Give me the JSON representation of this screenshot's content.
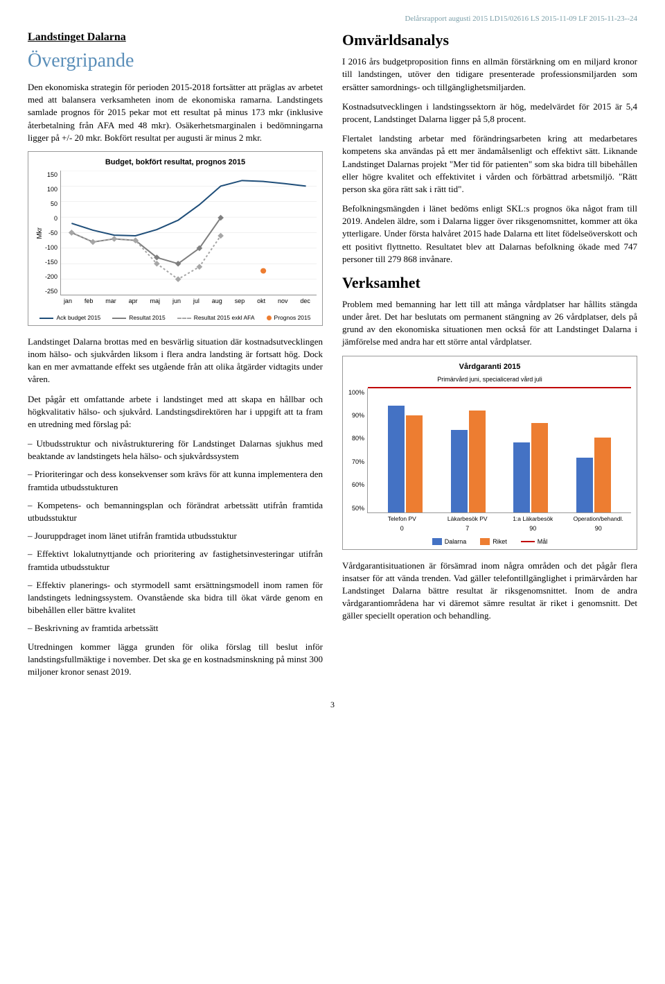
{
  "meta": {
    "header_line": "Delårsrapport augusti 2015 LD15/02616 LS 2015-11-09 LF 2015-11-23--24",
    "page_number": "3"
  },
  "left": {
    "org_title": "Landstinget Dalarna",
    "section_title": "Övergripande",
    "p1": "Den ekonomiska strategin för perioden 2015-2018 fortsätter att präglas av arbetet med att balansera verksamheten inom de ekonomiska ramarna. Landstingets samlade prognos för 2015 pekar mot ett resultat på minus 173 mkr (inklusive återbetalning från AFA med 48 mkr). Osäkerhetsmarginalen i bedömningarna ligger på +/- 20 mkr. Bokfört resultat per augusti är minus 2 mkr.",
    "p2": "Landstinget Dalarna brottas med en besvärlig situation där kostnadsutvecklingen inom hälso- och sjukvården liksom i flera andra landsting är fortsatt hög. Dock kan en mer avmattande effekt ses utgående från att olika åtgärder vidtagits under våren.",
    "p3": "Det pågår ett omfattande arbete i landstinget med att skapa en hållbar och högkvalitativ hälso- och sjukvård. Landstingsdirektören har i uppgift att ta fram en utredning med förslag på:",
    "b1": "– Utbudsstruktur och nivåstrukturering för Landstinget Dalarnas sjukhus med beaktande av landstingets hela hälso- och sjukvårdssystem",
    "b2": "– Prioriteringar och dess konsekvenser som krävs för att kunna implementera den framtida utbudsstukturen",
    "b3": "– Kompetens- och bemanningsplan och förändrat arbetssätt utifrån framtida utbudsstuktur",
    "b4": "– Jouruppdraget inom länet utifrån framtida utbudsstuktur",
    "b5": "– Effektivt lokalutnyttjande och prioritering av fastighetsinvesteringar utifrån framtida utbudsstuktur",
    "b6": "– Effektiv planerings- och styrmodell samt ersättningsmodell inom ramen för landstingets ledningssystem. Ovanstående ska bidra till ökat värde genom en bibehållen eller bättre kvalitet",
    "b7": "– Beskrivning av framtida arbetssätt",
    "p4": "Utredningen kommer lägga grunden för olika förslag till beslut inför landstingsfullmäktige i november. Det ska ge en kostnadsminskning på minst 300 miljoner kronor senast 2019."
  },
  "right": {
    "section1_title": "Omvärldsanalys",
    "r1": "I 2016 års budgetproposition finns en allmän förstärkning om en miljard kronor till landstingen, utöver den tidigare presenterade professionsmiljarden som ersätter samordnings- och tillgänglighetsmiljarden.",
    "r2": "Kostnadsutvecklingen i landstingssektorn är hög, medelvärdet för 2015 är 5,4 procent, Landstinget Dalarna ligger på 5,8 procent.",
    "r3": "Flertalet landsting arbetar med förändringsarbeten kring att medarbetares kompetens ska användas på ett mer ändamålsenligt och effektivt sätt. Liknande Landstinget Dalarnas projekt \"Mer tid för patienten\" som ska bidra till bibehållen eller högre kvalitet och effektivitet i vården och förbättrad arbetsmiljö. \"Rätt person ska göra rätt sak i rätt tid\".",
    "r4": "Befolkningsmängden i länet bedöms enligt SKL:s prognos öka något fram till 2019. Andelen äldre, som i Dalarna ligger över riksgenomsnittet, kommer att öka ytterligare. Under första halvåret 2015 hade Dalarna ett litet födelseöverskott och ett positivt flyttnetto. Resultatet blev att Dalarnas befolkning ökade med 747 personer till 279 868 invånare.",
    "section2_title": "Verksamhet",
    "r5": "Problem med bemanning har lett till att många vårdplatser har hållits stängda under året. Det har beslutats om permanent stängning av 26 vårdplatser, dels på grund av den ekonomiska situationen men också för att Landstinget Dalarna i jämförelse med andra har ett större antal vårdplatser.",
    "r6": "Vårdgarantisituationen är försämrad inom några områden och det pågår flera insatser för att vända trenden. Vad gäller telefontillgänglighet i primärvården har Landstinget Dalarna bättre resultat är riksgenomsnittet. Inom de andra vårdgarantiområdena har vi däremot sämre resultat är riket i genomsnitt. Det gäller speciellt operation och behandling."
  },
  "line_chart": {
    "title": "Budget, bokfört resultat, prognos 2015",
    "y_label": "Mkr",
    "y_ticks": [
      "150",
      "100",
      "50",
      "0",
      "-50",
      "-100",
      "-150",
      "-200",
      "-250"
    ],
    "x_ticks": [
      "jan",
      "feb",
      "mar",
      "apr",
      "maj",
      "jun",
      "jul",
      "aug",
      "sep",
      "okt",
      "nov",
      "dec"
    ],
    "ylim": [
      -250,
      150
    ],
    "series": {
      "ack_budget": {
        "label": "Ack budget 2015",
        "color": "#1f4e79",
        "values": [
          -20,
          -42,
          -58,
          -60,
          -40,
          -10,
          40,
          100,
          118,
          115,
          108,
          100
        ]
      },
      "resultat": {
        "label": "Resultat 2015",
        "color": "#7f7f7f",
        "values": [
          -50,
          -80,
          -70,
          -75,
          -130,
          -150,
          -100,
          -2,
          null,
          null,
          null,
          null
        ]
      },
      "resultat_exkl_afa": {
        "label": "Resultat 2015 exkl AFA",
        "color": "#a6a6a6",
        "dash": true,
        "values": [
          -50,
          -80,
          -70,
          -75,
          -150,
          -200,
          -160,
          -60,
          null,
          null,
          null,
          null
        ]
      },
      "prognos": {
        "label": "Prognos 2015",
        "color": "#ed7d31",
        "point_x": 9,
        "point_y": -173
      }
    }
  },
  "bar_chart": {
    "title": "Vårdgaranti 2015",
    "subtitle": "Primärvård juni, specialicerad vård juli",
    "y_ticks": [
      "100%",
      "90%",
      "80%",
      "70%",
      "60%",
      "50%"
    ],
    "ylim": [
      50,
      100
    ],
    "categories": [
      "Telefon PV",
      "Läkarbesök PV",
      "1:a Läkarbesök",
      "Operation/behandl."
    ],
    "cat_values": [
      "0",
      "7",
      "90",
      "90"
    ],
    "dalarna": {
      "label": "Dalarna",
      "color": "#4472c4",
      "values": [
        93,
        83,
        78,
        72
      ]
    },
    "riket": {
      "label": "Riket",
      "color": "#ed7d31",
      "values": [
        89,
        91,
        86,
        80
      ]
    },
    "goal": {
      "label": "Mål",
      "color": "#c00000",
      "value": 100
    }
  }
}
